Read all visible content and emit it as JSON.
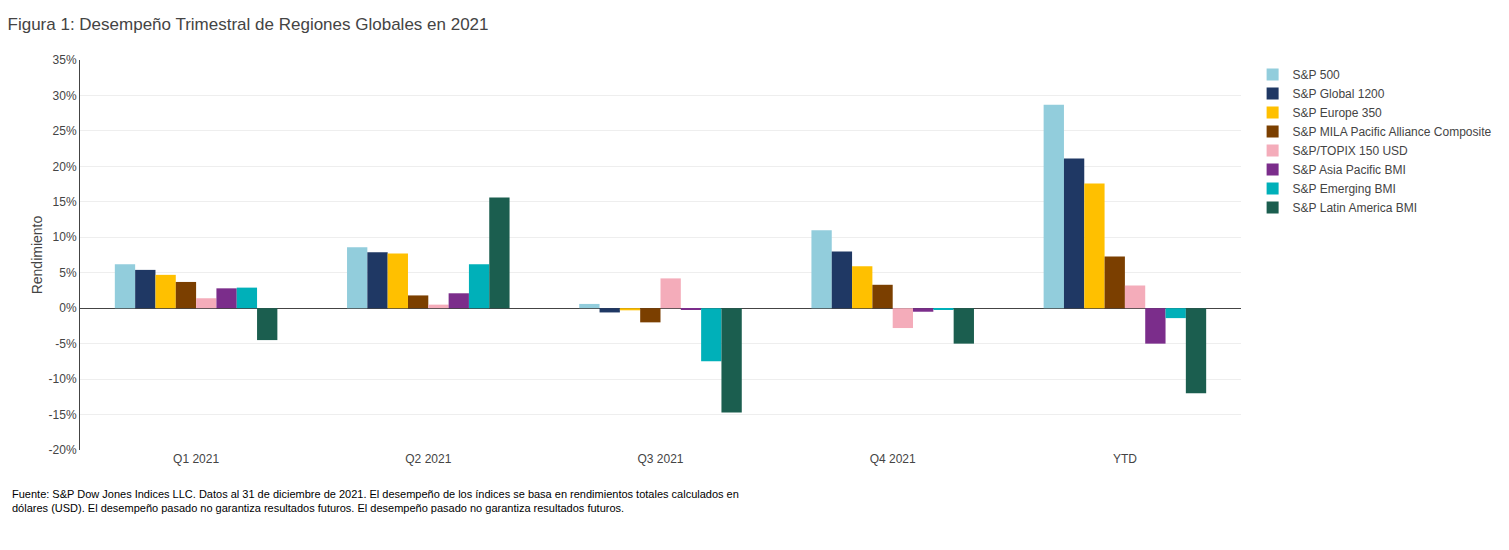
{
  "chart_data": {
    "type": "bar",
    "title": "Figura 1: Desempeño Trimestral de Regiones Globales en 2021",
    "ylabel": "Rendimiento",
    "annotations": [
      "Fuente: S&P Dow Jones Indices LLC. Datos al 31 de diciembre de 2021. El desempeño de los índices se basa en rendimientos totales calculados en\ndólares (USD). El desempeño pasado no garantiza resultados futuros. El desempeño pasado no garantiza resultados futuros."
    ],
    "categories": [
      "Q1 2021",
      "Q2 2021",
      "Q3 2021",
      "Q4 2021",
      "YTD"
    ],
    "series": [
      {
        "name": "S&P 500",
        "color": "#92CDDC",
        "values": [
          6.2,
          8.6,
          0.6,
          11.0,
          28.7
        ]
      },
      {
        "name": "S&P Global 1200",
        "color": "#1F3864",
        "values": [
          5.4,
          7.9,
          -0.6,
          8.0,
          21.1
        ]
      },
      {
        "name": "S&P Europe 350",
        "color": "#FFC000",
        "values": [
          4.7,
          7.7,
          -0.3,
          5.9,
          17.6
        ]
      },
      {
        "name": "S&P MILA Pacific Alliance Composite",
        "color": "#7B3F00",
        "values": [
          3.7,
          1.8,
          -2.0,
          3.3,
          7.3
        ]
      },
      {
        "name": "S&P/TOPIX 150 USD",
        "color": "#F4ACBA",
        "values": [
          1.4,
          0.5,
          4.2,
          -2.8,
          3.2
        ]
      },
      {
        "name": "S&P Asia Pacific BMI",
        "color": "#7B2D8B",
        "values": [
          2.8,
          2.1,
          -0.2,
          -0.5,
          -5.0
        ]
      },
      {
        "name": "S&P Emerging BMI",
        "color": "#00B0B9",
        "values": [
          2.9,
          6.2,
          -7.5,
          -0.2,
          -1.4
        ]
      },
      {
        "name": "S&P Latin America BMI",
        "color": "#1B5E4F",
        "values": [
          -4.5,
          15.6,
          -14.7,
          -5.0,
          -12.0
        ]
      }
    ],
    "ylim": [
      -20,
      35
    ],
    "yticks": [
      {
        "value": -20,
        "label": "-20%"
      },
      {
        "value": -15,
        "label": "-15%"
      },
      {
        "value": -10,
        "label": "-10%"
      },
      {
        "value": -5,
        "label": "-5%"
      },
      {
        "value": 0,
        "label": "0%"
      },
      {
        "value": 5,
        "label": "5%"
      },
      {
        "value": 10,
        "label": "10%"
      },
      {
        "value": 15,
        "label": "15%"
      },
      {
        "value": 20,
        "label": "20%"
      },
      {
        "value": 25,
        "label": "25%"
      },
      {
        "value": 30,
        "label": "30%"
      },
      {
        "value": 35,
        "label": "35%"
      }
    ],
    "grid": true,
    "legend": "right"
  }
}
